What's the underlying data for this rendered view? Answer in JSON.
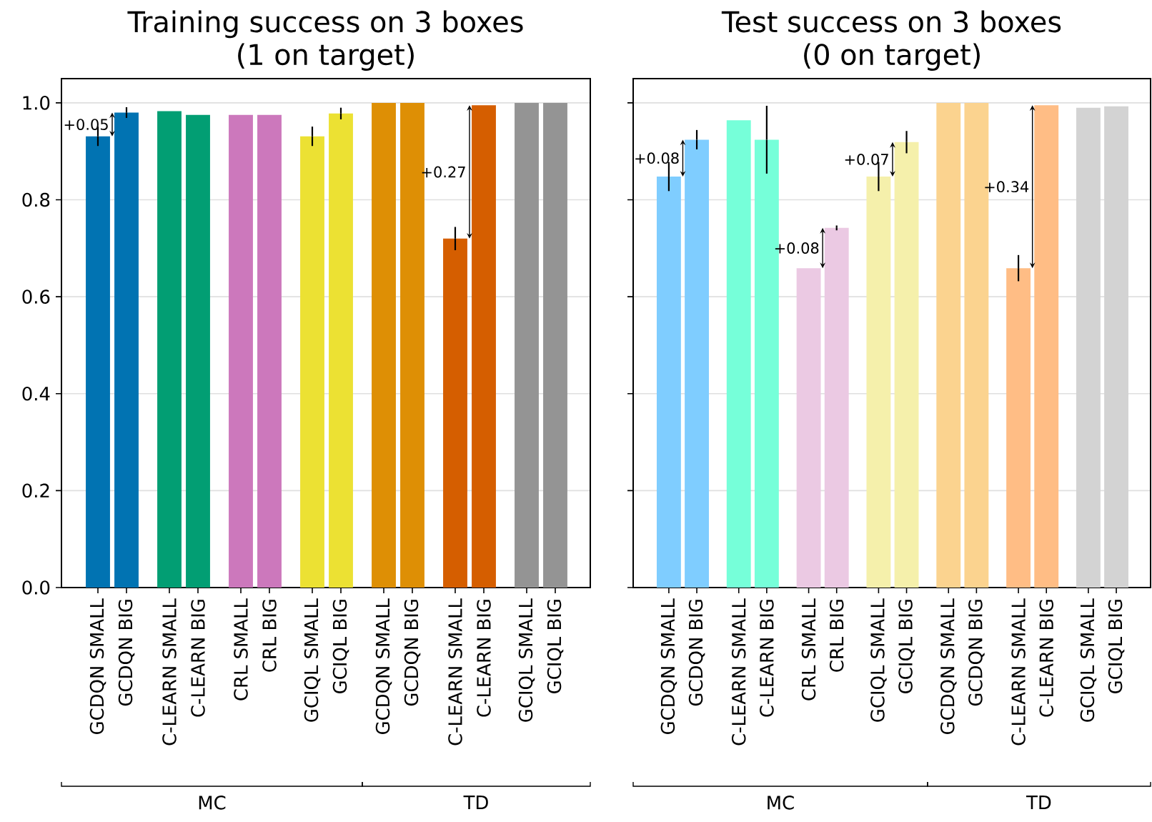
{
  "chart_data": [
    {
      "type": "bar",
      "title": "Training success on 3 boxes",
      "subtitle": "(1 on target)",
      "categories": [
        "GCDQN SMALL",
        "GCDQN BIG",
        "C-LEARN SMALL",
        "C-LEARN BIG",
        "CRL SMALL",
        "CRL BIG",
        "GCIQL SMALL",
        "GCIQL BIG",
        "GCDQN SMALL",
        "GCDQN BIG",
        "C-LEARN SMALL",
        "C-LEARN BIG",
        "GCIQL SMALL",
        "GCIQL BIG"
      ],
      "values": [
        0.931,
        0.98,
        0.983,
        0.975,
        0.975,
        0.975,
        0.931,
        0.978,
        1.0,
        1.0,
        0.72,
        0.995,
        1.0,
        1.0
      ],
      "errors": [
        0.02,
        0.011,
        null,
        null,
        null,
        null,
        0.02,
        0.012,
        null,
        null,
        0.024,
        null,
        null,
        null
      ],
      "colors": [
        "#0173b2",
        "#0173b2",
        "#029e73",
        "#029e73",
        "#cc78bc",
        "#cc78bc",
        "#ece133",
        "#ece133",
        "#de8f05",
        "#de8f05",
        "#d55e00",
        "#d55e00",
        "#949494",
        "#949494"
      ],
      "ylim": [
        0,
        1.05
      ],
      "yticks": [
        {
          "value": 0,
          "label": "0.0"
        },
        {
          "value": 0.2,
          "label": "0.2"
        },
        {
          "value": 0.4,
          "label": "0.4"
        },
        {
          "value": 0.6,
          "label": "0.6"
        },
        {
          "value": 0.8,
          "label": "0.8"
        },
        {
          "value": 1,
          "label": "1.0"
        }
      ],
      "grid": "y",
      "annotations": [
        {
          "text": "+0.05",
          "x": "GCDQN BIG",
          "y": 0.98
        },
        "+0.27",
        "MC",
        "TD"
      ]
    },
    {
      "type": "bar",
      "title": "Test success on 3 boxes",
      "subtitle": "(0 on target)",
      "categories": [
        "GCDQN SMALL",
        "GCDQN BIG",
        "C-LEARN SMALL",
        "C-LEARN BIG",
        "CRL SMALL",
        "CRL BIG",
        "GCIQL SMALL",
        "GCIQL BIG",
        "GCDQN SMALL",
        "GCDQN BIG",
        "C-LEARN SMALL",
        "C-LEARN BIG",
        "GCIQL SMALL",
        "GCIQL BIG"
      ],
      "values": [
        0.848,
        0.924,
        0.964,
        0.924,
        0.659,
        0.742,
        0.848,
        0.919,
        1.0,
        1.0,
        0.659,
        0.995,
        0.99,
        0.993
      ],
      "errors": [
        0.03,
        0.02,
        null,
        0.07,
        null,
        0.005,
        0.03,
        0.023,
        null,
        null,
        0.027,
        null,
        null,
        null
      ],
      "colors": [
        "#7fcdff",
        "#7fcdff",
        "#76ffd9",
        "#76ffd9",
        "#ebc9e3",
        "#ebc9e3",
        "#f5f0ab",
        "#f5f0ab",
        "#fbd38f",
        "#fbd38f",
        "#ffbd85",
        "#ffbd85",
        "#d3d3d3",
        "#d3d3d3"
      ],
      "ylim": [
        0,
        1.05
      ],
      "yticks": [
        {
          "value": 0,
          "label": null
        },
        {
          "value": 0.2,
          "label": null
        },
        {
          "value": 0.4,
          "label": null
        },
        {
          "value": 0.6,
          "label": null
        },
        {
          "value": 0.8,
          "label": null
        },
        {
          "value": 1,
          "label": null
        }
      ],
      "grid": "y",
      "tick_labels": "x",
      "annotations": [
        {
          "text": "+0.08",
          "x": "GCDQN BIG",
          "y": 0.924
        },
        {
          "text": "+0.08",
          "x": "CRL BIG",
          "y": 0.742
        },
        {
          "text": "+0.07",
          "x": "GCIQL BIG",
          "y": 0.919
        },
        "+0.34",
        "MC",
        "TD"
      ]
    }
  ]
}
